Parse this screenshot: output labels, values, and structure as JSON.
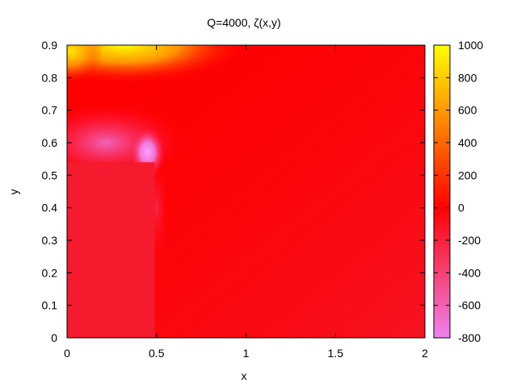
{
  "chart_data": {
    "type": "heatmap",
    "title": "Q=4000, ζ(x,y)",
    "xlabel": "x",
    "ylabel": "y",
    "xlim": [
      0,
      2
    ],
    "ylim": [
      0,
      0.9
    ],
    "x_ticks": [
      "0",
      "0.5",
      "1",
      "1.5",
      "2"
    ],
    "x_tick_values": [
      0,
      0.5,
      1,
      1.5,
      2
    ],
    "y_ticks": [
      "0",
      "0.1",
      "0.2",
      "0.3",
      "0.4",
      "0.5",
      "0.6",
      "0.7",
      "0.8",
      "0.9"
    ],
    "y_tick_values": [
      0,
      0.1,
      0.2,
      0.3,
      0.4,
      0.5,
      0.6,
      0.7,
      0.8,
      0.9
    ],
    "colorbar": {
      "range": [
        -800,
        1000
      ],
      "ticks": [
        "1000",
        "800",
        "600",
        "400",
        "200",
        "0",
        "-200",
        "-400",
        "-600",
        "-800"
      ],
      "tick_values": [
        1000,
        800,
        600,
        400,
        200,
        0,
        -200,
        -400,
        -600,
        -800
      ],
      "colors": {
        "min": "#ee82ee",
        "mid": "#ff0000",
        "max": "#ffff00"
      }
    },
    "grid": false,
    "obstacle": {
      "x": [
        0,
        0.49
      ],
      "y": [
        0,
        0.54
      ]
    },
    "field_features": [
      {
        "x": 0.35,
        "y": 0.9,
        "value": 1000
      },
      {
        "x": 0.0,
        "y": 0.9,
        "value": 800
      },
      {
        "x": 0.8,
        "y": 0.9,
        "value": 300
      },
      {
        "x": 0.45,
        "y": 0.56,
        "value": -700
      },
      {
        "x": 0.1,
        "y": 0.63,
        "value": -500
      },
      {
        "x": 1.0,
        "y": 0.5,
        "value": 100
      },
      {
        "x": 1.8,
        "y": 0.1,
        "value": -50
      },
      {
        "x": 0.25,
        "y": 0.25,
        "value": 0
      }
    ]
  }
}
